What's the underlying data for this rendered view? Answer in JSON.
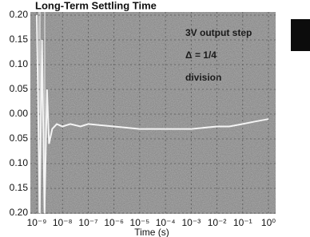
{
  "chart_data": {
    "type": "line",
    "title": "Long-Term Settling Time",
    "xlabel": "Time (s)",
    "annotations": [
      "3V output step",
      "Δ = 1/4",
      "division"
    ],
    "log_x": true,
    "grid": true,
    "x": [
      1e-09,
      1.3e-09,
      1.6e-09,
      2e-09,
      2.5e-09,
      3e-09,
      4e-09,
      6e-09,
      1e-08,
      2e-08,
      5e-08,
      1e-07,
      1e-06,
      1e-05,
      0.0001,
      0.001,
      0.01,
      0.03,
      0.1,
      0.3,
      1
    ],
    "series": [
      {
        "color": "#f4f4f4",
        "values": [
          0.2,
          -0.2,
          0.15,
          -0.2,
          0.05,
          -0.06,
          -0.03,
          -0.02,
          -0.025,
          -0.02,
          -0.025,
          -0.02,
          -0.025,
          -0.03,
          -0.03,
          -0.03,
          -0.025,
          -0.025,
          -0.02,
          -0.015,
          -0.01
        ]
      }
    ],
    "xlim": [
      1e-09,
      1
    ],
    "xticks": [
      {
        "value": 1e-09,
        "label": "10⁻⁹"
      },
      {
        "value": 1e-08,
        "label": "10⁻⁸"
      },
      {
        "value": 1e-07,
        "label": "10⁻⁷"
      },
      {
        "value": 1e-06,
        "label": "10⁻⁶"
      },
      {
        "value": 1e-05,
        "label": "10⁻⁵"
      },
      {
        "value": 0.0001,
        "label": "10⁻⁴"
      },
      {
        "value": 0.001,
        "label": "10⁻³"
      },
      {
        "value": 0.01,
        "label": "10⁻²"
      },
      {
        "value": 0.1,
        "label": "10⁻¹"
      },
      {
        "value": 1,
        "label": "10⁰"
      }
    ],
    "ylim": [
      -0.2,
      0.2
    ],
    "yticks": [
      {
        "value": 0.2,
        "label": "0.20"
      },
      {
        "value": 0.15,
        "label": "0.15"
      },
      {
        "value": 0.1,
        "label": "0.10"
      },
      {
        "value": 0.05,
        "label": "0.05"
      },
      {
        "value": 0,
        "label": "0.00"
      },
      {
        "value": -0.05,
        "label": "0.05"
      },
      {
        "value": -0.1,
        "label": "0.10"
      },
      {
        "value": -0.15,
        "label": "0.15"
      },
      {
        "value": -0.2,
        "label": "0.20"
      }
    ]
  }
}
